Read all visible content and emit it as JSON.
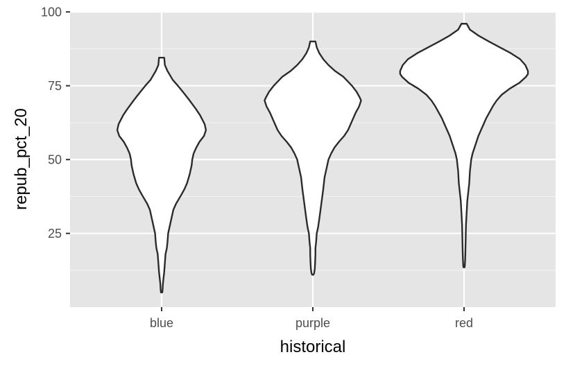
{
  "chart_data": {
    "type": "violin",
    "title": "",
    "xlabel": "historical",
    "ylabel": "repub_pct_20",
    "categories": [
      "blue",
      "purple",
      "red"
    ],
    "ylim": [
      0,
      100
    ],
    "yticks": [
      25,
      50,
      75,
      100
    ],
    "grid": true,
    "legend": "none",
    "colors": {
      "panel_background": "#e5e5e5",
      "grid_major": "#ffffff",
      "grid_minor": "#f2f2f2",
      "violin_fill": "#ffffff",
      "violin_stroke": "#2b2b2b",
      "tick_label": "#4d4d4d"
    },
    "series": [
      {
        "category": "blue",
        "min": 5,
        "max": 84.5,
        "profile": [
          [
            84.5,
            0.04
          ],
          [
            82,
            0.05
          ],
          [
            80,
            0.09
          ],
          [
            77,
            0.17
          ],
          [
            75,
            0.25
          ],
          [
            72,
            0.36
          ],
          [
            70,
            0.43
          ],
          [
            67,
            0.53
          ],
          [
            65,
            0.59
          ],
          [
            62,
            0.66
          ],
          [
            60,
            0.68
          ],
          [
            58,
            0.65
          ],
          [
            56,
            0.58
          ],
          [
            54,
            0.53
          ],
          [
            52,
            0.49
          ],
          [
            50,
            0.47
          ],
          [
            48,
            0.46
          ],
          [
            45,
            0.43
          ],
          [
            42,
            0.39
          ],
          [
            40,
            0.35
          ],
          [
            38,
            0.3
          ],
          [
            35,
            0.22
          ],
          [
            33,
            0.18
          ],
          [
            31,
            0.16
          ],
          [
            30,
            0.15
          ],
          [
            29,
            0.14
          ],
          [
            27,
            0.12
          ],
          [
            25,
            0.1
          ],
          [
            22,
            0.09
          ],
          [
            20,
            0.08
          ],
          [
            18,
            0.06
          ],
          [
            15,
            0.05
          ],
          [
            12,
            0.04
          ],
          [
            10,
            0.03
          ],
          [
            8,
            0.02
          ],
          [
            6,
            0.015
          ],
          [
            5,
            0.01
          ]
        ]
      },
      {
        "category": "purple",
        "min": 11,
        "max": 90,
        "profile": [
          [
            90,
            0.04
          ],
          [
            88,
            0.06
          ],
          [
            86,
            0.1
          ],
          [
            84,
            0.16
          ],
          [
            82,
            0.24
          ],
          [
            80,
            0.34
          ],
          [
            78,
            0.47
          ],
          [
            75,
            0.6
          ],
          [
            73,
            0.67
          ],
          [
            71,
            0.72
          ],
          [
            70,
            0.74
          ],
          [
            68,
            0.71
          ],
          [
            66,
            0.66
          ],
          [
            64,
            0.62
          ],
          [
            62,
            0.58
          ],
          [
            60,
            0.54
          ],
          [
            58,
            0.48
          ],
          [
            56,
            0.4
          ],
          [
            54,
            0.33
          ],
          [
            52,
            0.28
          ],
          [
            50,
            0.24
          ],
          [
            48,
            0.22
          ],
          [
            46,
            0.2
          ],
          [
            44,
            0.18
          ],
          [
            40,
            0.16
          ],
          [
            35,
            0.13
          ],
          [
            30,
            0.1
          ],
          [
            27,
            0.08
          ],
          [
            25,
            0.06
          ],
          [
            22,
            0.05
          ],
          [
            20,
            0.04
          ],
          [
            18,
            0.04
          ],
          [
            15,
            0.035
          ],
          [
            13,
            0.03
          ],
          [
            11.5,
            0.02
          ],
          [
            11,
            0.01
          ]
        ]
      },
      {
        "category": "red",
        "min": 13.5,
        "max": 96,
        "profile": [
          [
            96,
            0.04
          ],
          [
            94,
            0.09
          ],
          [
            92,
            0.22
          ],
          [
            90,
            0.38
          ],
          [
            88,
            0.55
          ],
          [
            86,
            0.72
          ],
          [
            84,
            0.86
          ],
          [
            82,
            0.94
          ],
          [
            80,
            0.98
          ],
          [
            79,
            0.98
          ],
          [
            78,
            0.95
          ],
          [
            76,
            0.85
          ],
          [
            74,
            0.7
          ],
          [
            72,
            0.58
          ],
          [
            70,
            0.5
          ],
          [
            68,
            0.44
          ],
          [
            66,
            0.39
          ],
          [
            64,
            0.34
          ],
          [
            62,
            0.3
          ],
          [
            60,
            0.26
          ],
          [
            58,
            0.22
          ],
          [
            56,
            0.19
          ],
          [
            54,
            0.16
          ],
          [
            52,
            0.13
          ],
          [
            50,
            0.11
          ],
          [
            48,
            0.1
          ],
          [
            46,
            0.09
          ],
          [
            44,
            0.085
          ],
          [
            42,
            0.08
          ],
          [
            40,
            0.07
          ],
          [
            38,
            0.06
          ],
          [
            36,
            0.05
          ],
          [
            34,
            0.045
          ],
          [
            32,
            0.04
          ],
          [
            30,
            0.035
          ],
          [
            28,
            0.03
          ],
          [
            26,
            0.028
          ],
          [
            24,
            0.026
          ],
          [
            22,
            0.024
          ],
          [
            20,
            0.022
          ],
          [
            18,
            0.02
          ],
          [
            16,
            0.017
          ],
          [
            14,
            0.012
          ],
          [
            13.5,
            0.008
          ]
        ]
      }
    ]
  }
}
